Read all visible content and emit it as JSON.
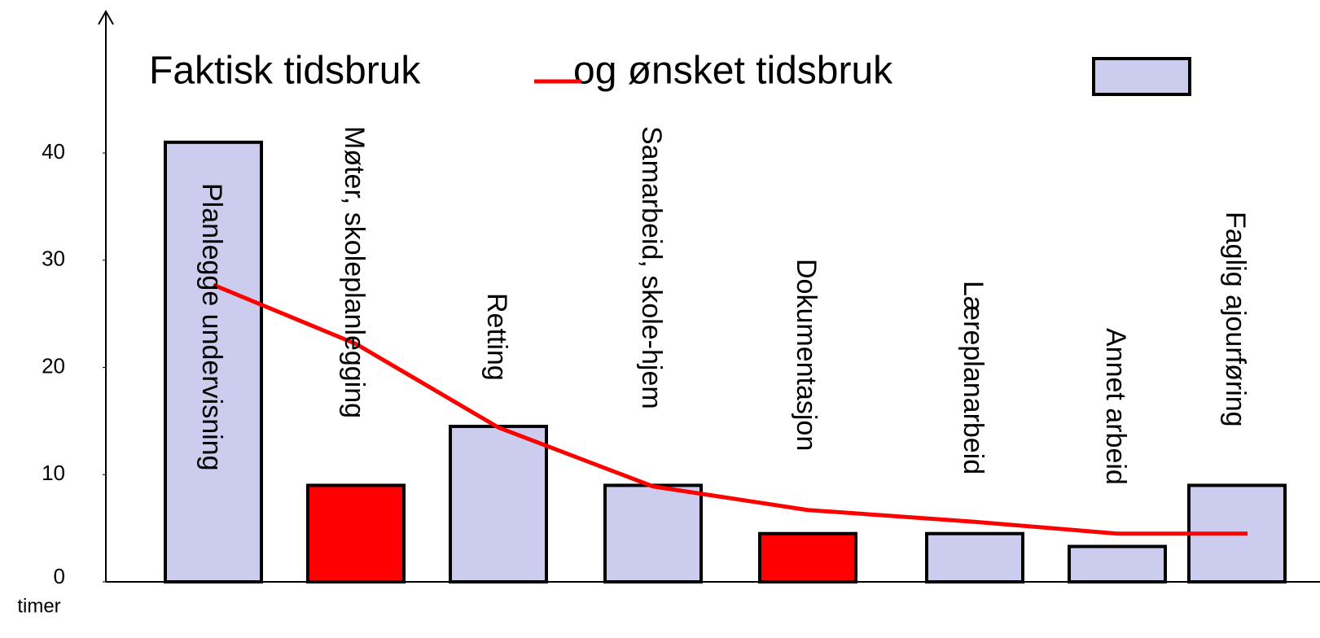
{
  "chart_data": {
    "type": "bar",
    "categories": [
      "Planlegge undervisning",
      "Møter, skoleplanlegging",
      "Retting",
      "Samarbeid, skole-hjem",
      "Dokumentasjon",
      "Læreplanarbeid",
      "Annet arbeid",
      "Faglig ajourføring"
    ],
    "series": [
      {
        "name": "Faktisk tidsbruk",
        "type": "bar",
        "color": "#ccccee",
        "colors": [
          "#ccccee",
          "#ff0000",
          "#ccccee",
          "#ccccee",
          "#ff0000",
          "#ccccee",
          "#ccccee",
          "#ccccee"
        ],
        "values": [
          41,
          9,
          14.5,
          9,
          4.5,
          4.5,
          3.3,
          9
        ]
      },
      {
        "name": "og ønsket tidsbruk",
        "type": "line",
        "color": "#ff0000",
        "values": [
          27.7,
          22.2,
          14.4,
          8.9,
          6.7,
          5.6,
          4.5,
          4.5
        ]
      }
    ],
    "y_label": "timer",
    "ylim": [
      0,
      40
    ],
    "yticks": [
      0,
      10,
      20,
      30,
      40
    ]
  }
}
